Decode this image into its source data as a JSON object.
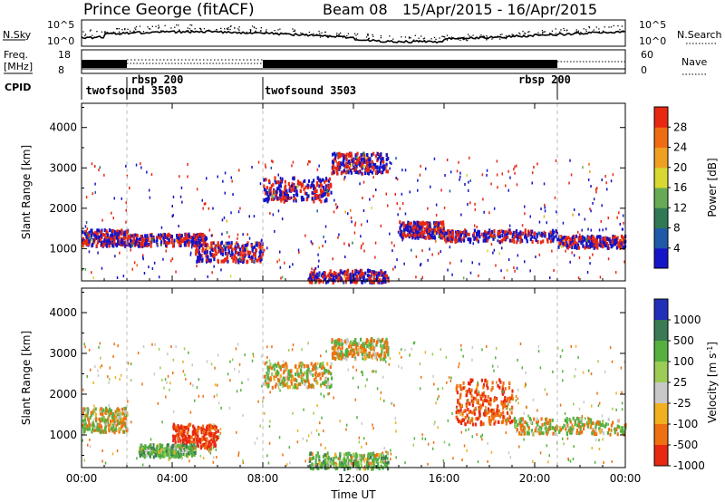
{
  "header": {
    "station": "Prince George (fitACF)",
    "beam": "Beam 08",
    "dates": "15/Apr/2015 - 16/Apr/2015"
  },
  "labels": {
    "nsky": "N.Sky",
    "nsearch": "N.Search",
    "freq": "Freq.",
    "mhz": "[MHz]",
    "nave": "Nave",
    "cpid": "CPID",
    "time_axis": "Time UT"
  },
  "top_axes": {
    "noise_ticks": [
      "10^5",
      "10^0"
    ],
    "noise_right_ticks": [
      "10^5",
      "10^0"
    ],
    "freq_ticks": [
      "18",
      "8"
    ],
    "nave_ticks": [
      "60",
      "0"
    ]
  },
  "cpid_labels": [
    {
      "text": "twofsound 3503",
      "t": 0.1
    },
    {
      "text": "rbsp 200",
      "t": 2.1
    },
    {
      "text": "twofsound 3503",
      "t": 8.0
    },
    {
      "text": "rbsp 200",
      "t": 19.2
    }
  ],
  "mode_changes_hours": [
    2.0,
    8.0,
    21.0
  ],
  "chart_data": [
    {
      "type": "heatmap",
      "name": "power",
      "xlabel": "Time UT",
      "ylabel": "Slant Range [km]",
      "xlim": [
        0,
        24
      ],
      "ylim": [
        200,
        4600
      ],
      "xticks": [
        "00:00",
        "04:00",
        "08:00",
        "12:00",
        "16:00",
        "20:00",
        "00:00"
      ],
      "yticks": [
        1000,
        2000,
        3000,
        4000
      ],
      "colorbar": {
        "label": "Power [dB]",
        "ticks": [
          4,
          8,
          12,
          16,
          20,
          24,
          28
        ],
        "range": [
          0,
          30
        ],
        "colors": [
          "#1414c8",
          "#1e5aa8",
          "#2f7a55",
          "#66aa55",
          "#d8d830",
          "#f0a020",
          "#ef6d10",
          "#e82810"
        ]
      },
      "bands": [
        {
          "hours": [
            0.0,
            2.0
          ],
          "range_km": [
            1100,
            1500
          ],
          "power_db": 22
        },
        {
          "hours": [
            2.0,
            5.5
          ],
          "range_km": [
            1100,
            1400
          ],
          "power_db": 18
        },
        {
          "hours": [
            5.0,
            8.0
          ],
          "range_km": [
            700,
            1200
          ],
          "power_db": 22
        },
        {
          "hours": [
            8.0,
            11.0
          ],
          "range_km": [
            2200,
            2800
          ],
          "power_db": 10
        },
        {
          "hours": [
            11.0,
            13.5
          ],
          "range_km": [
            2900,
            3400
          ],
          "power_db": 12
        },
        {
          "hours": [
            10.0,
            13.5
          ],
          "range_km": [
            200,
            500
          ],
          "power_db": 28
        },
        {
          "hours": [
            14.0,
            16.0
          ],
          "range_km": [
            1300,
            1700
          ],
          "power_db": 14
        },
        {
          "hours": [
            16.0,
            21.0
          ],
          "range_km": [
            1200,
            1500
          ],
          "power_db": 20
        },
        {
          "hours": [
            21.0,
            24.0
          ],
          "range_km": [
            1050,
            1350
          ],
          "power_db": 24
        }
      ]
    },
    {
      "type": "heatmap",
      "name": "velocity",
      "xlabel": "Time UT",
      "ylabel": "Slant Range [km]",
      "xlim": [
        0,
        24
      ],
      "ylim": [
        200,
        4600
      ],
      "xticks": [
        "00:00",
        "04:00",
        "08:00",
        "12:00",
        "16:00",
        "20:00",
        "00:00"
      ],
      "yticks": [
        1000,
        2000,
        3000,
        4000
      ],
      "colorbar": {
        "label": "Velocity [m s^-1]",
        "ticks": [
          1000,
          500,
          100,
          25,
          -25,
          -100,
          -500,
          -1000
        ],
        "colors": [
          "#2030b8",
          "#3a7a55",
          "#55b040",
          "#9ccc55",
          "#c8c8c8",
          "#f0b020",
          "#ef7010",
          "#e82810"
        ]
      },
      "bands": [
        {
          "hours": [
            0.0,
            2.0
          ],
          "range_km": [
            1100,
            1700
          ],
          "velocity": 0
        },
        {
          "hours": [
            4.0,
            6.0
          ],
          "range_km": [
            700,
            1300
          ],
          "velocity": -400
        },
        {
          "hours": [
            2.5,
            5.0
          ],
          "range_km": [
            500,
            800
          ],
          "velocity": 200
        },
        {
          "hours": [
            8.0,
            11.0
          ],
          "range_km": [
            2200,
            2800
          ],
          "velocity": 0
        },
        {
          "hours": [
            11.0,
            13.5
          ],
          "range_km": [
            2900,
            3400
          ],
          "velocity": 0
        },
        {
          "hours": [
            10.0,
            13.5
          ],
          "range_km": [
            200,
            600
          ],
          "velocity": 150
        },
        {
          "hours": [
            16.5,
            19.0
          ],
          "range_km": [
            1300,
            2400
          ],
          "velocity": -300
        },
        {
          "hours": [
            19.0,
            24.0
          ],
          "range_km": [
            1050,
            1450
          ],
          "velocity": 0
        }
      ]
    }
  ]
}
